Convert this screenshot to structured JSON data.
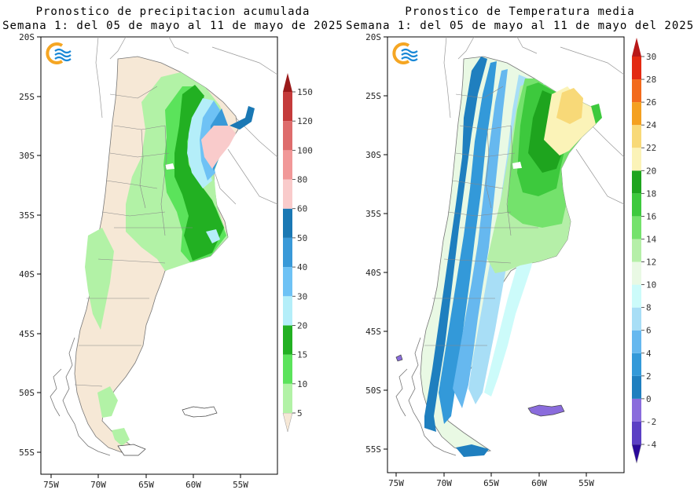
{
  "maps": [
    {
      "title_line1": "Pronostico de precipitacion acumulada",
      "title_line2": "Semana 1: del 05 de mayo al 11 de mayo de 2025",
      "logo_icon": "smn-sun-waves-logo",
      "lat_labels": [
        "20S",
        "25S",
        "30S",
        "35S",
        "40S",
        "45S",
        "50S",
        "55S"
      ],
      "lon_labels": [
        "75W",
        "70W",
        "65W",
        "60W",
        "55W"
      ],
      "colorbar": {
        "labels": [
          "5",
          "10",
          "15",
          "20",
          "30",
          "40",
          "50",
          "60",
          "80",
          "100",
          "120",
          "150"
        ],
        "colors": [
          "#f6e8d6",
          "#b2f2a6",
          "#5be35b",
          "#22b022",
          "#b4eef9",
          "#6ec2f5",
          "#3999d8",
          "#1a78b4",
          "#f9cbcb",
          "#f19898",
          "#de6c6c",
          "#c43b3b",
          "#9a1a1a"
        ]
      }
    },
    {
      "title_line1": "Pronostico de Temperatura media",
      "title_line2": "Semana 1: del 05 de mayo al 11 de mayo del 2025",
      "logo_icon": "smn-sun-waves-logo",
      "lat_labels": [
        "20S",
        "25S",
        "30S",
        "35S",
        "40S",
        "45S",
        "50S",
        "55S"
      ],
      "lon_labels": [
        "75W",
        "70W",
        "65W",
        "60W",
        "55W"
      ],
      "colorbar": {
        "labels": [
          "-4",
          "-2",
          "0",
          "2",
          "4",
          "6",
          "8",
          "10",
          "12",
          "14",
          "16",
          "18",
          "20",
          "22",
          "24",
          "26",
          "28",
          "30"
        ],
        "colors": [
          "#2a0a9a",
          "#5b3fc4",
          "#8a6cdc",
          "#1f7fbf",
          "#3399d9",
          "#66b8ef",
          "#a8def6",
          "#ccfbfa",
          "#e9f9e4",
          "#b5efa8",
          "#74e26c",
          "#3dc93d",
          "#1ea41e",
          "#fbf3b8",
          "#f8d978",
          "#f4a020",
          "#f26a1c",
          "#e32a12",
          "#b81818"
        ]
      }
    }
  ]
}
